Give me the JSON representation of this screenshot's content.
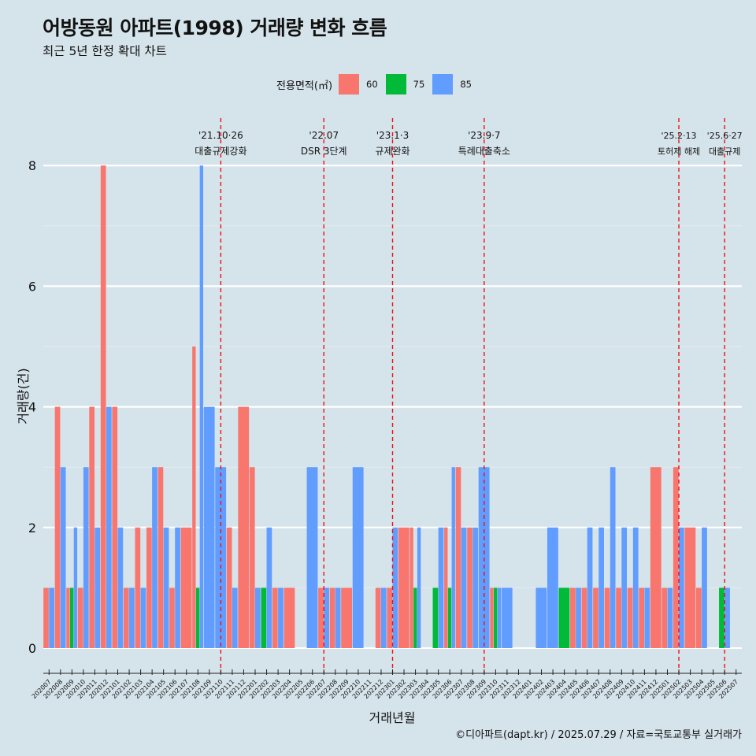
{
  "chart_data": {
    "type": "bar",
    "title": "어방동원 아파트(1998) 거래량 변화 흐름",
    "subtitle": "최근 5년 한정 확대 차트",
    "xlabel": "거래년월",
    "ylabel": "거래량(건)",
    "caption": "©디아파트(dapt.kr) / 2025.07.29 / 자료=국토교통부 실거래가",
    "legend": {
      "title": "전용면적(㎡)",
      "position": "top",
      "items": [
        {
          "name": "60",
          "color": "#f8766d"
        },
        {
          "name": "75",
          "color": "#00ba38"
        },
        {
          "name": "85",
          "color": "#619cff"
        }
      ]
    },
    "ylim": [
      0,
      8.7
    ],
    "yticks": [
      "0",
      "2",
      "4",
      "6",
      "8"
    ],
    "grid": true,
    "months": [
      "202007",
      "202008",
      "202009",
      "202010",
      "202011",
      "202012",
      "202101",
      "202102",
      "202103",
      "202104",
      "202105",
      "202106",
      "202107",
      "202108",
      "202109",
      "202110",
      "202111",
      "202112",
      "202201",
      "202202",
      "202203",
      "202204",
      "202205",
      "202206",
      "202207",
      "202208",
      "202209",
      "202210",
      "202211",
      "202212",
      "202301",
      "202302",
      "202303",
      "202304",
      "202305",
      "202306",
      "202307",
      "202308",
      "202309",
      "202310",
      "202311",
      "202312",
      "202401",
      "202402",
      "202403",
      "202404",
      "202405",
      "202406",
      "202407",
      "202408",
      "202409",
      "202410",
      "202411",
      "202412",
      "202501",
      "202502",
      "202503",
      "202504",
      "202505",
      "202506",
      "202507"
    ],
    "series": [
      {
        "name": "60",
        "values": [
          1,
          4,
          1,
          1,
          4,
          8,
          4,
          1,
          2,
          2,
          3,
          1,
          2,
          5,
          0,
          0,
          2,
          4,
          3,
          0,
          1,
          1,
          0,
          0,
          1,
          1,
          1,
          0,
          0,
          1,
          1,
          2,
          2,
          0,
          0,
          2,
          3,
          2,
          0,
          1,
          0,
          0,
          0,
          0,
          0,
          0,
          1,
          1,
          1,
          1,
          1,
          1,
          1,
          3,
          1,
          3,
          2,
          1,
          0,
          0,
          0
        ]
      },
      {
        "name": "75",
        "values": [
          0,
          0,
          1,
          0,
          0,
          0,
          0,
          0,
          0,
          0,
          0,
          0,
          0,
          1,
          0,
          0,
          0,
          0,
          0,
          1,
          0,
          0,
          0,
          0,
          0,
          0,
          0,
          0,
          0,
          0,
          0,
          0,
          1,
          0,
          1,
          1,
          0,
          0,
          0,
          1,
          0,
          0,
          0,
          0,
          0,
          1,
          0,
          0,
          0,
          0,
          0,
          0,
          0,
          0,
          0,
          0,
          0,
          0,
          0,
          1,
          0
        ]
      },
      {
        "name": "85",
        "values": [
          1,
          3,
          2,
          3,
          2,
          4,
          2,
          1,
          1,
          3,
          2,
          2,
          0,
          8,
          4,
          3,
          1,
          0,
          1,
          2,
          1,
          0,
          0,
          3,
          1,
          1,
          0,
          3,
          0,
          1,
          2,
          0,
          2,
          0,
          2,
          3,
          2,
          2,
          3,
          1,
          1,
          0,
          0,
          1,
          2,
          0,
          1,
          2,
          2,
          3,
          2,
          2,
          1,
          0,
          1,
          2,
          0,
          2,
          0,
          1,
          0
        ]
      }
    ],
    "events": [
      {
        "month": "202110",
        "date": "'21.10·26",
        "label": "대출규제강화"
      },
      {
        "month": "202207",
        "date": "'22.07",
        "label": "DSR 3단계"
      },
      {
        "month": "202301",
        "date": "'23.1·3",
        "label": "규제완화"
      },
      {
        "month": "202309",
        "date": "'23.9·7",
        "label": "특례대출축소"
      },
      {
        "month": "202502",
        "date": "'25.2·13",
        "label": "토허제 해제"
      },
      {
        "month": "202506",
        "date": "'25.6·27",
        "label": "대출규제"
      }
    ]
  }
}
